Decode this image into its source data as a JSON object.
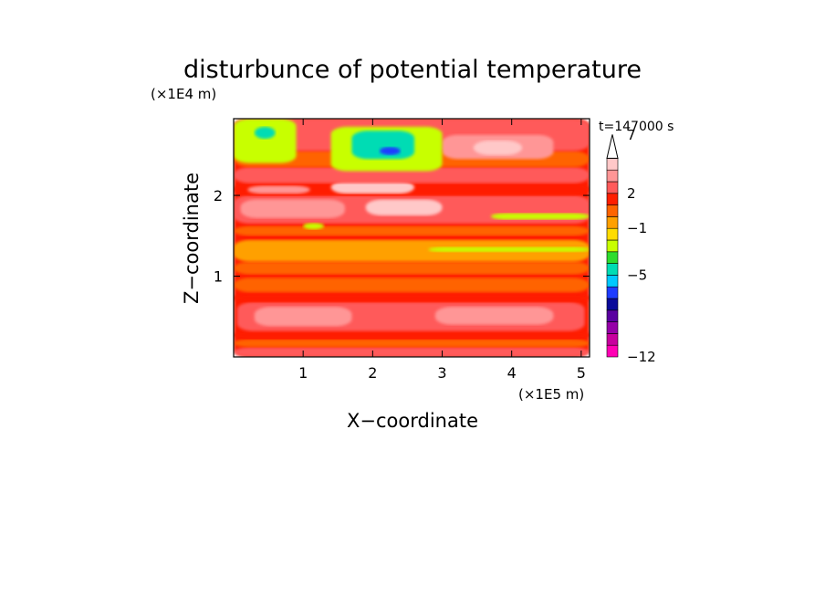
{
  "chart_data": {
    "type": "heatmap",
    "title": "disturbunce of potential temperature",
    "time_label": "t=147000 s",
    "xlabel": "X−coordinate",
    "ylabel": "Z−coordinate",
    "x_unit": "(×1E5 m)",
    "y_unit": "(×1E4 m)",
    "xlim": [
      0,
      5.12
    ],
    "ylim": [
      0,
      2.95
    ],
    "x_ticks": [
      1,
      2,
      3,
      4,
      5
    ],
    "x_tick_labels": [
      "1",
      "2",
      "3",
      "4",
      "5"
    ],
    "y_ticks": [
      1,
      2
    ],
    "y_tick_labels": [
      "1",
      "2"
    ],
    "colorbar": {
      "colors": [
        "#ff00b4",
        "#c8009e",
        "#9600a8",
        "#5a00a0",
        "#0a0a9a",
        "#1e3cff",
        "#00c8ff",
        "#00dcb4",
        "#2ddc2d",
        "#c8ff00",
        "#ffdc00",
        "#ffa000",
        "#ff6400",
        "#ff1e00",
        "#ff5a5a",
        "#ff9696",
        "#ffc8c8"
      ],
      "tick_levels": [
        -12,
        -5,
        -1,
        2,
        7
      ],
      "tick_labels": [
        "−12",
        "−5",
        "−1",
        "2",
        "7"
      ],
      "extend": "max"
    },
    "regions": [
      {
        "x": [
          0,
          5.12
        ],
        "y": [
          0,
          2.95
        ],
        "level": 1
      },
      {
        "x": [
          0,
          5.12
        ],
        "y": [
          0,
          0.12
        ],
        "level": 2
      },
      {
        "x": [
          0,
          5.12
        ],
        "y": [
          0.12,
          0.22
        ],
        "level": 0
      },
      {
        "x": [
          0,
          5.12
        ],
        "y": [
          0.22,
          0.32
        ],
        "level": 1
      },
      {
        "x": [
          0.05,
          5.05
        ],
        "y": [
          0.32,
          0.68
        ],
        "level": 2
      },
      {
        "x": [
          0.3,
          1.7
        ],
        "y": [
          0.38,
          0.62
        ],
        "level": 3
      },
      {
        "x": [
          2.9,
          4.6
        ],
        "y": [
          0.4,
          0.62
        ],
        "level": 3
      },
      {
        "x": [
          0,
          5.12
        ],
        "y": [
          0.68,
          0.78
        ],
        "level": 1
      },
      {
        "x": [
          0,
          5.12
        ],
        "y": [
          0.8,
          0.98
        ],
        "level": 0
      },
      {
        "x": [
          0,
          5.12
        ],
        "y": [
          1.02,
          1.18
        ],
        "level": 0
      },
      {
        "x": [
          0,
          5.12
        ],
        "y": [
          1.18,
          1.45
        ],
        "level": -1
      },
      {
        "x": [
          2.8,
          5.12
        ],
        "y": [
          1.3,
          1.36
        ],
        "level": -3
      },
      {
        "x": [
          0,
          5.12
        ],
        "y": [
          1.5,
          1.62
        ],
        "level": 0
      },
      {
        "x": [
          0,
          5.12
        ],
        "y": [
          1.65,
          2.0
        ],
        "level": 2
      },
      {
        "x": [
          0.1,
          1.6
        ],
        "y": [
          1.72,
          1.95
        ],
        "level": 3
      },
      {
        "x": [
          1.9,
          3.0
        ],
        "y": [
          1.75,
          1.95
        ],
        "level": 4
      },
      {
        "x": [
          1.0,
          1.3
        ],
        "y": [
          1.58,
          1.66
        ],
        "level": -3
      },
      {
        "x": [
          3.7,
          5.12
        ],
        "y": [
          1.7,
          1.78
        ],
        "level": -3
      },
      {
        "x": [
          0,
          5.12
        ],
        "y": [
          2.0,
          2.15
        ],
        "level": 1
      },
      {
        "x": [
          0.2,
          1.1
        ],
        "y": [
          2.02,
          2.12
        ],
        "level": 3
      },
      {
        "x": [
          1.4,
          2.6
        ],
        "y": [
          2.02,
          2.18
        ],
        "level": 4
      },
      {
        "x": [
          0,
          5.12
        ],
        "y": [
          2.15,
          2.35
        ],
        "level": 2
      },
      {
        "x": [
          0,
          5.12
        ],
        "y": [
          2.35,
          2.55
        ],
        "level": 0
      },
      {
        "x": [
          0,
          5.12
        ],
        "y": [
          2.55,
          2.95
        ],
        "level": 2
      },
      {
        "x": [
          3.0,
          4.6
        ],
        "y": [
          2.45,
          2.75
        ],
        "level": 3
      },
      {
        "x": [
          3.45,
          4.15
        ],
        "y": [
          2.5,
          2.68
        ],
        "level": 4
      },
      {
        "x": [
          3.65,
          3.85
        ],
        "y": [
          2.56,
          2.64
        ],
        "level": 5
      },
      {
        "x": [
          0,
          0.9
        ],
        "y": [
          2.4,
          2.95
        ],
        "level": -3
      },
      {
        "x": [
          0.3,
          0.6
        ],
        "y": [
          2.7,
          2.85
        ],
        "level": -5
      },
      {
        "x": [
          1.4,
          3.0
        ],
        "y": [
          2.3,
          2.85
        ],
        "level": -3
      },
      {
        "x": [
          1.7,
          2.6
        ],
        "y": [
          2.45,
          2.8
        ],
        "level": -5
      },
      {
        "x": [
          2.1,
          2.4
        ],
        "y": [
          2.5,
          2.6
        ],
        "level": -7
      }
    ]
  }
}
